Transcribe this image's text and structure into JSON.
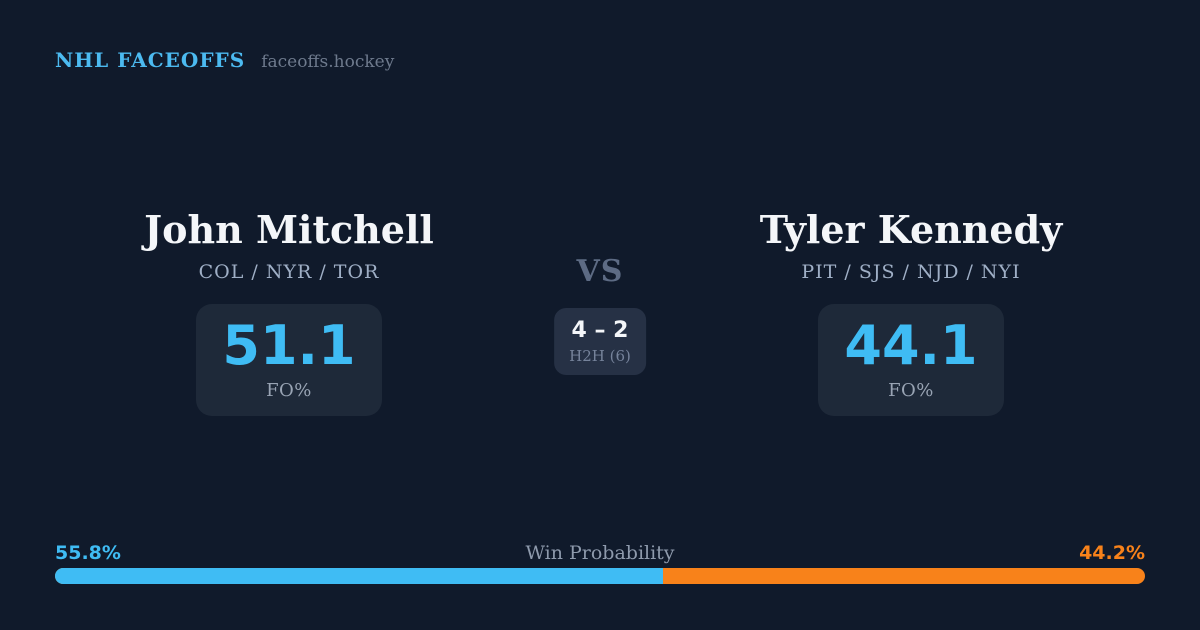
{
  "header": {
    "brand": "NHL FACEOFFS",
    "site": "faceoffs.hockey"
  },
  "matchup": {
    "vs_label": "VS",
    "player_left": {
      "name": "John Mitchell",
      "teams": "COL / NYR / TOR",
      "fo_pct": "51.1",
      "fo_label": "FO%"
    },
    "player_right": {
      "name": "Tyler Kennedy",
      "teams": "PIT / SJS / NJD / NYI",
      "fo_pct": "44.1",
      "fo_label": "FO%"
    },
    "h2h": {
      "score": "4 – 2",
      "label": "H2H (6)"
    }
  },
  "win_probability": {
    "title": "Win Probability",
    "left_pct_label": "55.8%",
    "right_pct_label": "44.2%",
    "left_value": 55.8,
    "right_value": 44.2
  },
  "colors": {
    "background": "#101a2b",
    "card_background": "#1e2939",
    "h2h_card_background": "#263145",
    "accent_blue": "#3fbcf4",
    "accent_orange": "#f8821a",
    "brand_blue": "#4cbaf0",
    "text_white": "#f4f6f9",
    "text_slate": "#9fafc6",
    "text_muted": "#6e7a8d"
  }
}
